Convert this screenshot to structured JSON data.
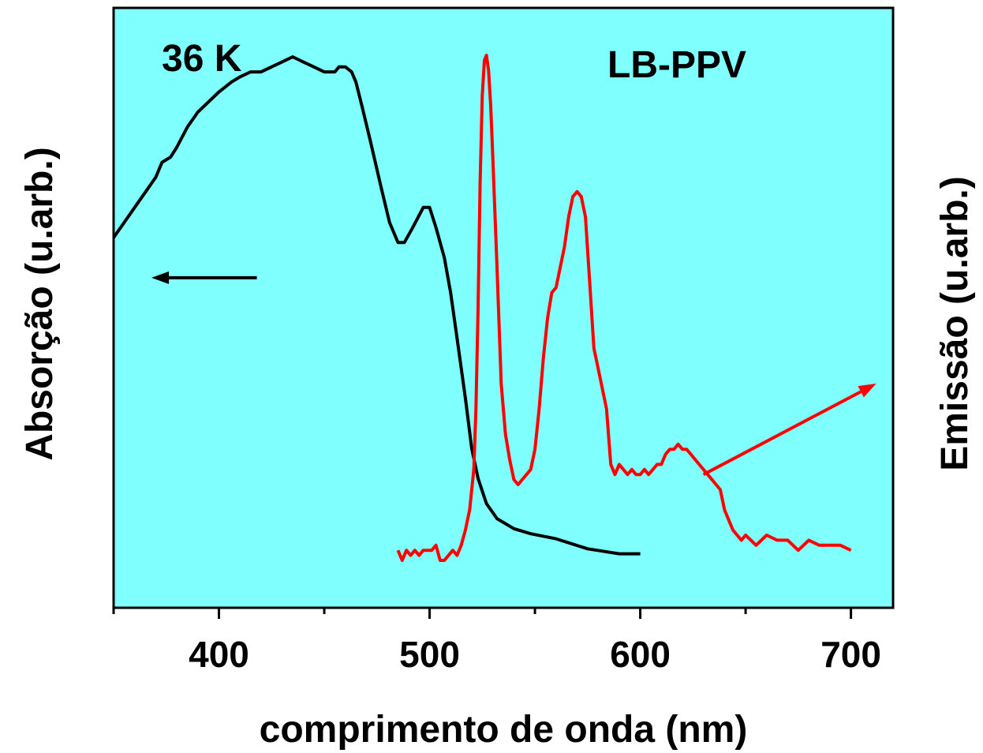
{
  "chart_data": {
    "type": "line",
    "annotations": {
      "temperature": "36 K",
      "sample": "LB-PPV"
    },
    "xlabel": "comprimento de onda (nm)",
    "ylabel_left": "Absorção (u.arb.)",
    "ylabel_right": "Emissão (u.arb.)",
    "xlim": [
      350,
      720
    ],
    "x_ticks_major": [
      400,
      500,
      600,
      700
    ],
    "x_tick_labels": [
      "400",
      "500",
      "600",
      "700"
    ],
    "x_ticks_minor": [
      350,
      450,
      550,
      650
    ],
    "y_left_lim": [
      0,
      1
    ],
    "y_right_lim": [
      0,
      1
    ],
    "grid": false,
    "background_color": "#80FFFF",
    "series": [
      {
        "axis": "left",
        "color": "#000000",
        "x": [
          350,
          355,
          360,
          365,
          370,
          373,
          377,
          380,
          385,
          390,
          395,
          400,
          403,
          406,
          410,
          415,
          420,
          425,
          430,
          435,
          440,
          445,
          450,
          455,
          457,
          460,
          463,
          465,
          468,
          472,
          477,
          481,
          485,
          488,
          492,
          497,
          500,
          503,
          507,
          510,
          513,
          517,
          520,
          523,
          527,
          532,
          540,
          548,
          560,
          575,
          590,
          600
        ],
        "y": [
          0.64,
          0.67,
          0.7,
          0.73,
          0.76,
          0.79,
          0.8,
          0.82,
          0.86,
          0.89,
          0.91,
          0.93,
          0.94,
          0.95,
          0.96,
          0.97,
          0.97,
          0.98,
          0.99,
          1.0,
          0.99,
          0.98,
          0.97,
          0.97,
          0.98,
          0.98,
          0.97,
          0.95,
          0.9,
          0.83,
          0.74,
          0.67,
          0.63,
          0.63,
          0.66,
          0.7,
          0.7,
          0.66,
          0.6,
          0.53,
          0.44,
          0.32,
          0.22,
          0.16,
          0.11,
          0.08,
          0.06,
          0.05,
          0.04,
          0.02,
          0.01,
          0.01
        ]
      },
      {
        "axis": "right",
        "color": "#FF0000",
        "x": [
          485,
          487,
          489,
          491,
          493,
          495,
          497,
          499,
          501,
          503,
          505,
          507,
          509,
          511,
          513,
          515,
          517,
          519,
          521,
          522,
          523,
          524,
          525,
          526,
          527,
          528,
          529,
          530,
          532,
          534,
          536,
          538,
          540,
          542,
          544,
          546,
          548,
          550,
          552,
          554,
          556,
          558,
          560,
          562,
          564,
          566,
          568,
          570,
          572,
          574,
          576,
          578,
          580,
          582,
          584,
          586,
          588,
          590,
          592,
          594,
          596,
          598,
          600,
          602,
          604,
          606,
          608,
          610,
          612,
          614,
          616,
          618,
          620,
          622,
          624,
          626,
          628,
          630,
          632,
          634,
          636,
          638,
          640,
          642,
          644,
          646,
          648,
          650,
          655,
          660,
          665,
          670,
          675,
          680,
          685,
          690,
          695,
          700
        ],
        "y": [
          0.02,
          0.0,
          0.02,
          0.01,
          0.02,
          0.01,
          0.02,
          0.02,
          0.02,
          0.03,
          0.0,
          0.0,
          0.01,
          0.02,
          0.01,
          0.03,
          0.06,
          0.1,
          0.18,
          0.3,
          0.5,
          0.75,
          0.92,
          0.99,
          1.0,
          0.97,
          0.9,
          0.8,
          0.58,
          0.35,
          0.25,
          0.2,
          0.16,
          0.15,
          0.16,
          0.17,
          0.18,
          0.22,
          0.3,
          0.4,
          0.48,
          0.53,
          0.54,
          0.58,
          0.62,
          0.68,
          0.72,
          0.73,
          0.72,
          0.68,
          0.55,
          0.42,
          0.38,
          0.34,
          0.3,
          0.19,
          0.17,
          0.19,
          0.18,
          0.17,
          0.18,
          0.17,
          0.17,
          0.18,
          0.17,
          0.18,
          0.19,
          0.19,
          0.21,
          0.22,
          0.22,
          0.23,
          0.22,
          0.22,
          0.21,
          0.2,
          0.19,
          0.18,
          0.17,
          0.16,
          0.15,
          0.14,
          0.1,
          0.08,
          0.06,
          0.05,
          0.04,
          0.05,
          0.03,
          0.05,
          0.04,
          0.04,
          0.02,
          0.04,
          0.03,
          0.03,
          0.03,
          0.02
        ]
      }
    ],
    "arrows": [
      {
        "axis": "left",
        "from": [
          418,
          0.56
        ],
        "to": [
          368,
          0.56
        ],
        "color": "#000000"
      },
      {
        "axis": "right",
        "from": [
          630,
          0.17
        ],
        "to": [
          712,
          0.35
        ],
        "color": "#FF0000"
      }
    ]
  }
}
